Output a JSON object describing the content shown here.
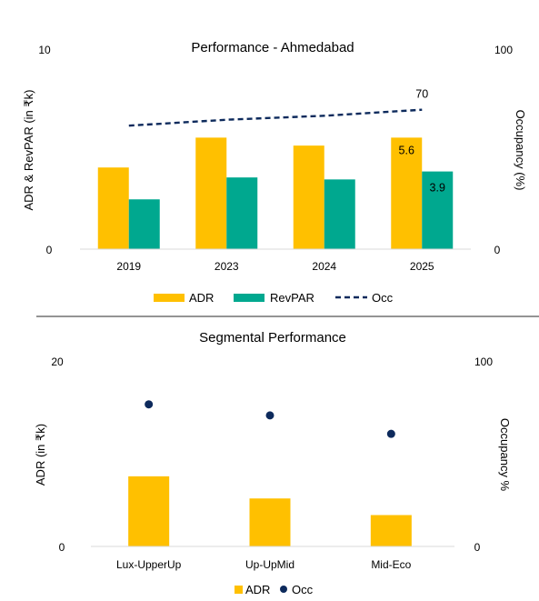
{
  "colors": {
    "adr": "#FFC000",
    "revpar": "#00A88F",
    "occ": "#0D2A5C",
    "divider": "#555555"
  },
  "chart_data": [
    {
      "type": "bar",
      "title": "Performance - Ahmedabad",
      "categories": [
        "2019",
        "2023",
        "2024",
        "2025"
      ],
      "series": [
        {
          "name": "ADR",
          "kind": "bar",
          "axis": "left",
          "values": [
            4.1,
            5.6,
            5.2,
            5.6
          ]
        },
        {
          "name": "RevPAR",
          "kind": "bar",
          "axis": "left",
          "values": [
            2.5,
            3.6,
            3.5,
            3.9
          ]
        },
        {
          "name": "Occ",
          "kind": "line",
          "style": "dashed",
          "axis": "right",
          "values": [
            62,
            65,
            67,
            70
          ]
        }
      ],
      "ylabel": "ADR & RevPAR (in ₹k)",
      "y2label": "Occupancy (%)",
      "ylim": [
        0,
        10
      ],
      "y2lim": [
        0,
        100
      ],
      "yticks": [
        "0",
        "10"
      ],
      "y2ticks": [
        "0",
        "100"
      ],
      "data_labels": [
        {
          "series": "ADR",
          "index": 3,
          "text": "5.6"
        },
        {
          "series": "RevPAR",
          "index": 3,
          "text": "3.9"
        },
        {
          "series": "Occ",
          "index": 3,
          "text": "70"
        }
      ],
      "legend": "bottom",
      "grid": false
    },
    {
      "type": "bar",
      "title": "Segmental Performance",
      "categories": [
        "Lux-UpperUp",
        "Up-UpMid",
        "Mid-Eco"
      ],
      "series": [
        {
          "name": "ADR",
          "kind": "bar",
          "axis": "left",
          "values": [
            7.6,
            5.2,
            3.4
          ]
        },
        {
          "name": "Occ",
          "kind": "scatter",
          "axis": "right",
          "values": [
            77,
            71,
            61
          ]
        }
      ],
      "ylabel": "ADR (in ₹k)",
      "y2label": "Occupancy %",
      "ylim": [
        0,
        20
      ],
      "y2lim": [
        0,
        100
      ],
      "yticks": [
        "0",
        "20"
      ],
      "y2ticks": [
        "0",
        "100"
      ],
      "legend": "bottom",
      "grid": false
    }
  ]
}
